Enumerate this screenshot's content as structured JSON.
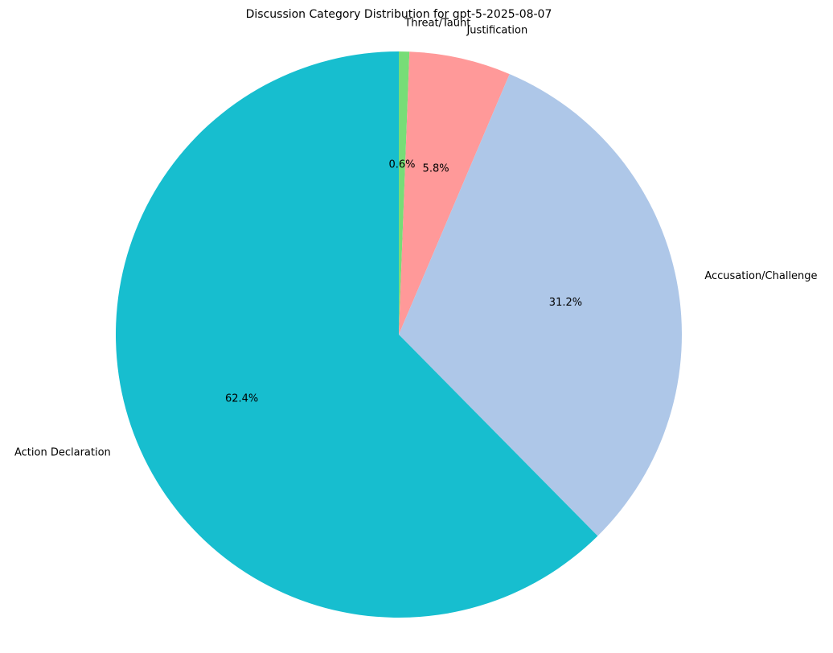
{
  "chart_data": {
    "type": "pie",
    "title": "Discussion Category Distribution for gpt-5-2025-08-07",
    "start_angle_deg": 90,
    "direction": "clockwise",
    "slices": [
      {
        "label": "Threat/Taunt",
        "value": 0.6,
        "pct_label": "0.6%",
        "color": "#77dd77"
      },
      {
        "label": "Justification",
        "value": 5.8,
        "pct_label": "5.8%",
        "color": "#ff9999"
      },
      {
        "label": "Accusation/Challenge",
        "value": 31.2,
        "pct_label": "31.2%",
        "color": "#aec7e8"
      },
      {
        "label": "Action Declaration",
        "value": 62.4,
        "pct_label": "62.4%",
        "color": "#17becf"
      }
    ]
  }
}
